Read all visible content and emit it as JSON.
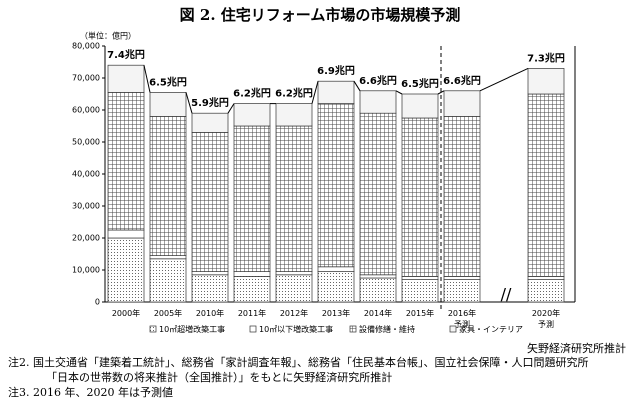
{
  "chart_data": {
    "type": "stacked-bar",
    "title": "図 2. 住宅リフォーム市場の市場規模予測",
    "unit_label": "（単位：億円）",
    "categories": [
      "2000年",
      "2005年",
      "2010年",
      "2011年",
      "2012年",
      "2013年",
      "2014年",
      "2015年",
      "2016年\n予測",
      "2020年\n予測"
    ],
    "series": [
      {
        "name": "10㎡超増改築工事",
        "color": "#ffffff",
        "pattern": "dots",
        "values": [
          20000,
          13500,
          8500,
          8000,
          8500,
          9500,
          7500,
          7000,
          7000,
          7000
        ]
      },
      {
        "name": "10㎡以下増改築工事",
        "color": "#ffffff",
        "pattern": "none",
        "values": [
          2500,
          1000,
          1000,
          1500,
          1000,
          1500,
          1000,
          1000,
          1000,
          1000
        ]
      },
      {
        "name": "設備修繕・維持",
        "color": "#ffffff",
        "pattern": "grid",
        "values": [
          43000,
          43500,
          43500,
          45500,
          45500,
          51000,
          50500,
          49500,
          50000,
          57000
        ]
      },
      {
        "name": "家具・インテリア",
        "color": "#f4f4f4",
        "pattern": "none",
        "values": [
          8500,
          7500,
          6000,
          7000,
          7000,
          7000,
          7000,
          7500,
          8000,
          8000
        ]
      }
    ],
    "total_labels": [
      "7.4兆円",
      "6.5兆円",
      "5.9兆円",
      "6.2兆円",
      "6.2兆円",
      "6.9兆円",
      "6.6兆円",
      "6.5兆円",
      "6.6兆円",
      "7.3兆円"
    ],
    "ylim": [
      0,
      80000
    ],
    "yticks": [
      0,
      {
        "value": 10000,
        "label": "10,000"
      },
      {
        "value": 20000,
        "label": "20,000"
      },
      {
        "value": 30000,
        "label": "30,000"
      },
      {
        "value": 40000,
        "label": "40,000"
      },
      {
        "value": 50000,
        "label": "50,000"
      },
      {
        "value": 60000,
        "label": "60,000"
      },
      {
        "value": 70000,
        "label": "70,000"
      },
      {
        "value": 80000,
        "label": "80,000"
      }
    ],
    "grid": false
  },
  "footer": {
    "source": "矢野経済研究所推計",
    "notes": [
      "注2. 国土交通省「建築着工統計」、総務省「家計調査年報」、総務省「住民基本台帳」、国立社会保障・人口問題研究所",
      "「日本の世帯数の将来推計（全国推計）」をもとに矢野経済研究所推計",
      "注3. 2016 年、2020 年は予測値"
    ]
  }
}
